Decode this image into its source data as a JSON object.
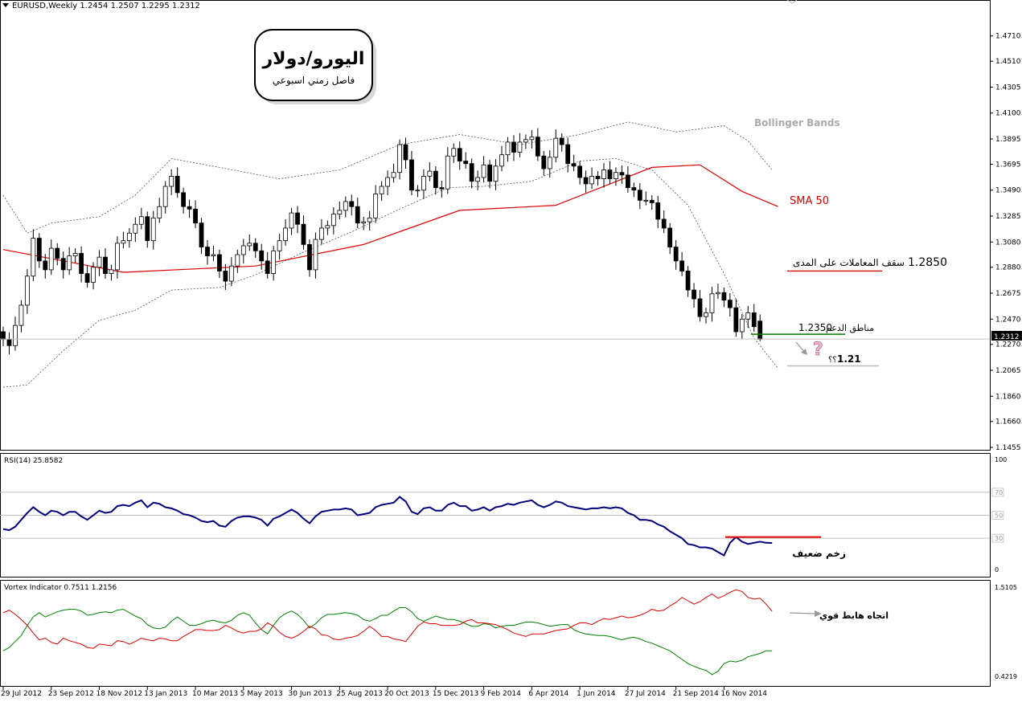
{
  "symbol_header": "EURUSD,Weekly  1.2454 1.2507 1.2295 1.2312",
  "title_box": {
    "title": "اليورو/دولار",
    "subtitle": "فاصل زمني اسبوعي"
  },
  "annotations": {
    "bollinger": "Bollinger Bands",
    "sma": "SMA 50",
    "range_top_label": "سقف المعاملات على المدى",
    "range_top_value": "1.2850",
    "support_label": "مناطق الدعم",
    "support_value": "1.2350",
    "target_value": "1.21",
    "target_mark": "؟؟",
    "question": "?",
    "rsi_note": "زخم ضعيف",
    "vortex_note": "اتجاه هابط قوي"
  },
  "current_price_label": "1.2312",
  "rsi_header": "RSI(14) 25.8582",
  "vortex_header": "Vortex Indicator 0.7511 1.2156",
  "colors": {
    "sma": "#e00000",
    "rsi": "#00007b",
    "vi_plus": "#008000",
    "vi_minus": "#e00000",
    "support": "#008000",
    "resistance": "#cc0000"
  },
  "chart_data": [
    {
      "type": "candlestick",
      "symbol": "EURUSD",
      "timeframe": "Weekly",
      "last_bar": {
        "open": 1.2454,
        "high": 1.2507,
        "low": 1.2295,
        "close": 1.2312
      },
      "ylim": [
        1.1455,
        1.481
      ],
      "y_ticks": [
        "1.4710",
        "1.4510",
        "1.4305",
        "1.4100",
        "1.3895",
        "1.3695",
        "1.3490",
        "1.3285",
        "1.3080",
        "1.2880",
        "1.2675",
        "1.2470",
        "1.2270",
        "1.2065",
        "1.1860",
        "1.1660",
        "1.1455"
      ],
      "x_ticks": [
        "29 Jul 2012",
        "23 Sep 2012",
        "18 Nov 2012",
        "13 Jan 2013",
        "10 Mar 2013",
        "5 May 2013",
        "30 Jun 2013",
        "25 Aug 2013",
        "20 Oct 2013",
        "15 Dec 2013",
        "9 Feb 2014",
        "6 Apr 2014",
        "1 Jun 2014",
        "27 Jul 2014",
        "21 Sep 2014",
        "16 Nov 2014"
      ],
      "closes": [
        1.231,
        1.226,
        1.242,
        1.258,
        1.281,
        1.311,
        1.293,
        1.286,
        1.303,
        1.295,
        1.286,
        1.297,
        1.299,
        1.283,
        1.276,
        1.288,
        1.296,
        1.283,
        1.286,
        1.307,
        1.309,
        1.315,
        1.322,
        1.328,
        1.309,
        1.327,
        1.336,
        1.352,
        1.36,
        1.347,
        1.336,
        1.334,
        1.323,
        1.304,
        1.297,
        1.298,
        1.285,
        1.277,
        1.289,
        1.298,
        1.305,
        1.307,
        1.301,
        1.293,
        1.283,
        1.301,
        1.309,
        1.319,
        1.331,
        1.322,
        1.306,
        1.286,
        1.31,
        1.319,
        1.321,
        1.33,
        1.333,
        1.34,
        1.336,
        1.323,
        1.324,
        1.327,
        1.346,
        1.352,
        1.359,
        1.363,
        1.385,
        1.373,
        1.349,
        1.349,
        1.36,
        1.364,
        1.351,
        1.35,
        1.376,
        1.382,
        1.372,
        1.37,
        1.356,
        1.359,
        1.369,
        1.356,
        1.368,
        1.377,
        1.387,
        1.379,
        1.387,
        1.389,
        1.391,
        1.376,
        1.366,
        1.375,
        1.39,
        1.385,
        1.37,
        1.368,
        1.359,
        1.354,
        1.36,
        1.358,
        1.365,
        1.358,
        1.363,
        1.361,
        1.351,
        1.349,
        1.341,
        1.341,
        1.339,
        1.326,
        1.319,
        1.304,
        1.293,
        1.285,
        1.27,
        1.263,
        1.249,
        1.252,
        1.267,
        1.268,
        1.262,
        1.256,
        1.237,
        1.247,
        1.252,
        1.241,
        1.231
      ],
      "sma50": [
        [
          0,
          1.302
        ],
        [
          20,
          1.284
        ],
        [
          42,
          1.289
        ],
        [
          60,
          1.306
        ],
        [
          76,
          1.333
        ],
        [
          92,
          1.337
        ],
        [
          108,
          1.367
        ],
        [
          116,
          1.369
        ],
        [
          123,
          1.348
        ],
        [
          129,
          1.336
        ]
      ],
      "bollinger_upper": [
        [
          0,
          1.345
        ],
        [
          4,
          1.315
        ],
        [
          8,
          1.323
        ],
        [
          16,
          1.328
        ],
        [
          22,
          1.345
        ],
        [
          28,
          1.374
        ],
        [
          36,
          1.367
        ],
        [
          46,
          1.358
        ],
        [
          56,
          1.365
        ],
        [
          66,
          1.385
        ],
        [
          76,
          1.393
        ],
        [
          86,
          1.385
        ],
        [
          96,
          1.393
        ],
        [
          104,
          1.403
        ],
        [
          112,
          1.395
        ],
        [
          120,
          1.4
        ],
        [
          124,
          1.388
        ],
        [
          128,
          1.365
        ]
      ],
      "bollinger_lower": [
        [
          0,
          1.193
        ],
        [
          4,
          1.195
        ],
        [
          10,
          1.222
        ],
        [
          16,
          1.246
        ],
        [
          22,
          1.254
        ],
        [
          28,
          1.27
        ],
        [
          36,
          1.272
        ],
        [
          42,
          1.282
        ],
        [
          50,
          1.3
        ],
        [
          58,
          1.316
        ],
        [
          66,
          1.334
        ],
        [
          74,
          1.351
        ],
        [
          80,
          1.352
        ],
        [
          88,
          1.356
        ],
        [
          96,
          1.372
        ],
        [
          102,
          1.374
        ],
        [
          108,
          1.365
        ],
        [
          114,
          1.337
        ],
        [
          120,
          1.283
        ],
        [
          125,
          1.232
        ],
        [
          129,
          1.208
        ]
      ],
      "levels": {
        "resistance": 1.285,
        "support": 1.235,
        "target": 1.21,
        "current": 1.2312
      }
    },
    {
      "type": "line",
      "name": "RSI(14)",
      "ylim": [
        0,
        100
      ],
      "levels": [
        70,
        50,
        30
      ],
      "y_ticks": [
        "100",
        "70",
        "50",
        "30",
        "0"
      ],
      "values": [
        38,
        37,
        40,
        46,
        52,
        57,
        53,
        50,
        54,
        53,
        50,
        53,
        53,
        49,
        46,
        50,
        54,
        52,
        53,
        58,
        59,
        58,
        61,
        63,
        57,
        61,
        60,
        57,
        56,
        54,
        51,
        50,
        48,
        45,
        44,
        45,
        41,
        40,
        45,
        48,
        49,
        49,
        48,
        46,
        41,
        47,
        49,
        52,
        55,
        52,
        47,
        43,
        49,
        53,
        54,
        55,
        55,
        56,
        55,
        50,
        51,
        52,
        57,
        59,
        60,
        61,
        66,
        62,
        53,
        51,
        56,
        57,
        54,
        54,
        59,
        61,
        58,
        58,
        54,
        55,
        57,
        54,
        57,
        58,
        60,
        59,
        61,
        62,
        63,
        59,
        57,
        59,
        62,
        61,
        58,
        57,
        56,
        55,
        56,
        56,
        57,
        56,
        57,
        56,
        52,
        50,
        46,
        46,
        45,
        42,
        40,
        36,
        33,
        30,
        25,
        24,
        22,
        22,
        21,
        18,
        15,
        26,
        31,
        27,
        25,
        26,
        27,
        26,
        25.86
      ]
    },
    {
      "type": "line",
      "name": "Vortex Indicator",
      "ylim": [
        0.4219,
        1.5105
      ],
      "y_ticks": [
        "1.5105",
        "0.4219"
      ],
      "series": [
        {
          "name": "VI+",
          "values": [
            0.75,
            0.79,
            0.86,
            0.93,
            1.05,
            1.15,
            1.2,
            1.15,
            1.18,
            1.21,
            1.23,
            1.24,
            1.24,
            1.22,
            1.17,
            1.18,
            1.2,
            1.21,
            1.2,
            1.23,
            1.24,
            1.2,
            1.16,
            1.13,
            1.06,
            1.02,
            1.01,
            1.03,
            1.1,
            1.15,
            1.1,
            1.05,
            1.05,
            1.07,
            1.1,
            1.11,
            1.09,
            1.08,
            1.11,
            1.17,
            1.2,
            1.17,
            1.08,
            1.0,
            0.95,
            1.05,
            1.14,
            1.19,
            1.22,
            1.18,
            1.11,
            1.02,
            1.07,
            1.14,
            1.18,
            1.18,
            1.19,
            1.2,
            1.19,
            1.17,
            1.12,
            1.1,
            1.13,
            1.17,
            1.17,
            1.22,
            1.26,
            1.26,
            1.21,
            1.13,
            1.1,
            1.13,
            1.16,
            1.14,
            1.12,
            1.12,
            1.1,
            1.07,
            1.04,
            1.04,
            1.07,
            1.06,
            1.02,
            1.04,
            1.05,
            1.05,
            1.07,
            1.09,
            1.09,
            1.08,
            1.06,
            1.04,
            1.05,
            1.06,
            1.06,
            1.0,
            0.97,
            0.95,
            0.94,
            0.93,
            0.93,
            0.92,
            0.9,
            0.88,
            0.9,
            0.91,
            0.89,
            0.86,
            0.84,
            0.81,
            0.78,
            0.75,
            0.7,
            0.65,
            0.6,
            0.57,
            0.54,
            0.52,
            0.47,
            0.51,
            0.6,
            0.63,
            0.62,
            0.64,
            0.68,
            0.7,
            0.72,
            0.75,
            0.7511
          ]
        },
        {
          "name": "VI-",
          "values": [
            1.2,
            1.23,
            1.18,
            1.12,
            1.05,
            0.96,
            0.88,
            0.9,
            0.85,
            0.83,
            0.9,
            0.87,
            0.85,
            0.83,
            0.79,
            0.78,
            0.83,
            0.82,
            0.81,
            0.87,
            0.86,
            0.83,
            0.86,
            0.9,
            0.88,
            0.87,
            0.9,
            0.89,
            0.87,
            0.87,
            0.92,
            0.96,
            1.0,
            1.0,
            0.99,
            0.99,
            1.0,
            1.05,
            1.02,
            0.98,
            0.96,
            0.98,
            0.98,
            1.01,
            1.08,
            1.04,
            0.97,
            0.92,
            0.9,
            0.93,
            0.98,
            1.04,
            1.01,
            0.94,
            0.93,
            0.89,
            0.88,
            0.9,
            0.91,
            0.93,
            0.98,
            1.04,
            0.99,
            0.92,
            0.92,
            0.89,
            0.88,
            0.86,
            0.95,
            1.04,
            1.09,
            1.07,
            1.07,
            1.05,
            1.05,
            1.05,
            1.06,
            1.1,
            1.12,
            1.08,
            1.08,
            1.07,
            1.06,
            1.03,
            1.0,
            0.96,
            0.94,
            0.92,
            0.95,
            0.95,
            0.95,
            0.97,
            0.99,
            1.0,
            1.01,
            1.05,
            1.08,
            1.08,
            1.06,
            1.1,
            1.13,
            1.12,
            1.14,
            1.16,
            1.14,
            1.15,
            1.17,
            1.2,
            1.24,
            1.22,
            1.23,
            1.28,
            1.32,
            1.38,
            1.34,
            1.3,
            1.33,
            1.38,
            1.42,
            1.37,
            1.4,
            1.44,
            1.47,
            1.45,
            1.38,
            1.36,
            1.37,
            1.3,
            1.2156
          ]
        }
      ]
    }
  ]
}
